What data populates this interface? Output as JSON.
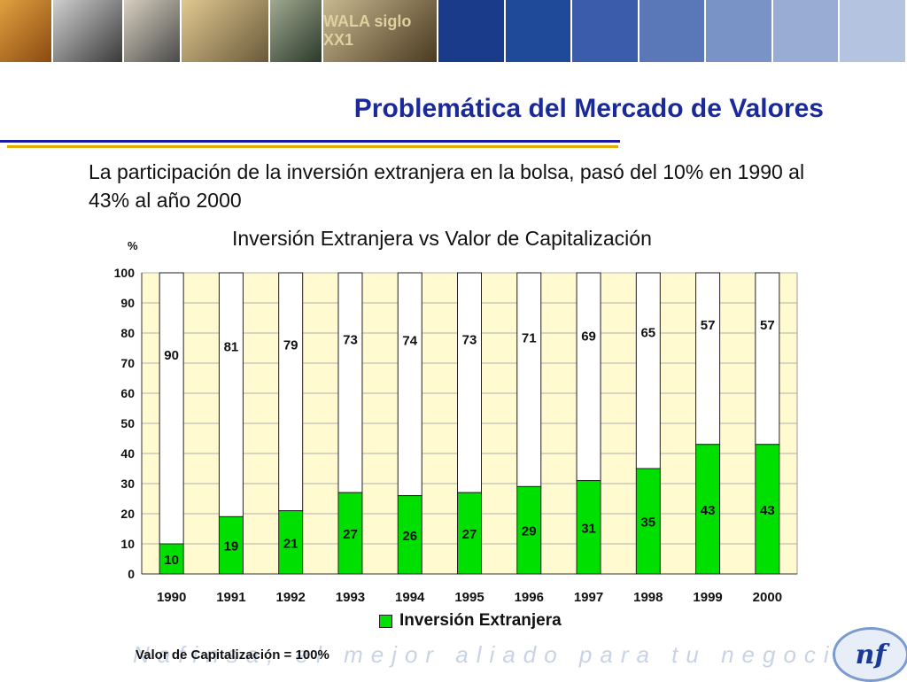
{
  "header": {
    "photos": [
      "photo-woman-phone",
      "photo-camera",
      "photo-man-phone",
      "photo-laptop",
      "photo-crane",
      "photo-wala-siglo-xxi"
    ],
    "photo_text": "WALA siglo XX1",
    "stripe_colors": [
      "#1a3a8a",
      "#1f4a9a",
      "#3a5caa",
      "#5a78b8",
      "#7a93c6",
      "#98acd4",
      "#b4c4e0"
    ]
  },
  "page": {
    "title": "Problemática del Mercado de Valores",
    "lead": "La participación de la inversión extranjera en la bolsa, pasó del 10% en 1990 al 43% al año 2000"
  },
  "chart_data": {
    "type": "bar",
    "stacked": true,
    "title": "Inversión Extranjera vs Valor de Capitalización",
    "ylabel": "%",
    "ylim": [
      0,
      100
    ],
    "yticks": [
      0,
      10,
      20,
      30,
      40,
      50,
      60,
      70,
      80,
      90,
      100
    ],
    "categories": [
      "1990",
      "1991",
      "1992",
      "1993",
      "1994",
      "1995",
      "1996",
      "1997",
      "1998",
      "1999",
      "2000"
    ],
    "series": [
      {
        "name": "Inversión  Extranjera",
        "color": "#00e000",
        "values": [
          10,
          19,
          21,
          27,
          26,
          27,
          29,
          31,
          35,
          43,
          43
        ]
      },
      {
        "color": "#ffffff",
        "values": [
          90,
          81,
          79,
          73,
          74,
          73,
          71,
          69,
          65,
          57,
          57
        ]
      }
    ],
    "plot_background": "#fffad0",
    "grid": true,
    "legend_position": "bottom",
    "footnote": "Valor de Capitalización = 100%"
  },
  "footer": {
    "watermark": "Nafinsa, el mejor aliado para tu negocio",
    "logo_text": "nf"
  }
}
